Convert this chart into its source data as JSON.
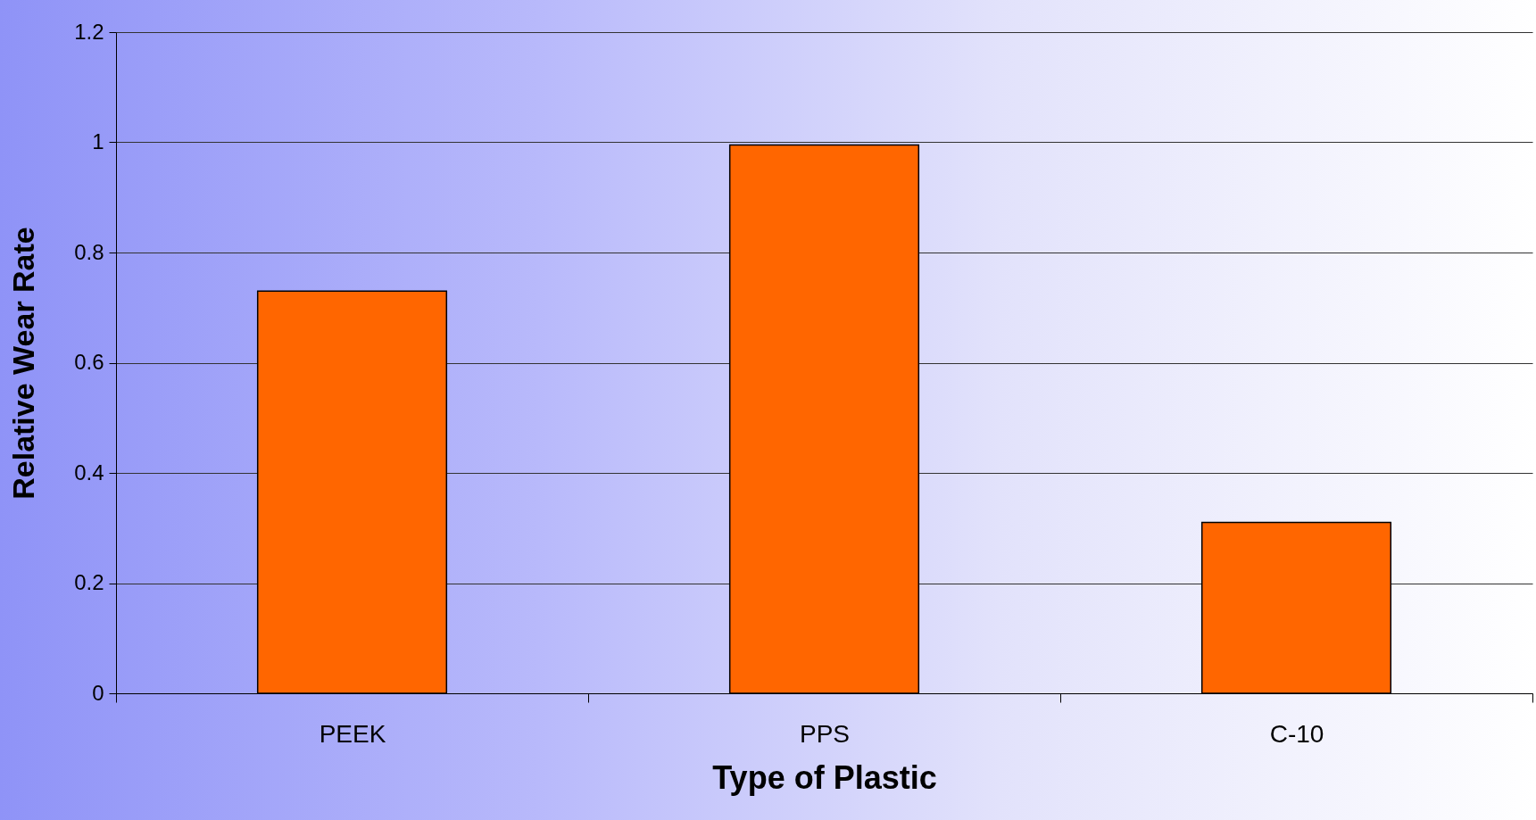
{
  "chart_data": {
    "type": "bar",
    "xlabel": "Type of Plastic",
    "ylabel": "Relative Wear Rate",
    "categories": [
      "PEEK",
      "PPS",
      "C-10"
    ],
    "values": [
      0.73,
      0.995,
      0.31
    ],
    "color": "#ff6600",
    "ylim": [
      0,
      1.2
    ],
    "yticks": [
      0,
      0.2,
      0.4,
      0.6,
      0.8,
      1,
      1.2
    ],
    "grid": "y"
  }
}
